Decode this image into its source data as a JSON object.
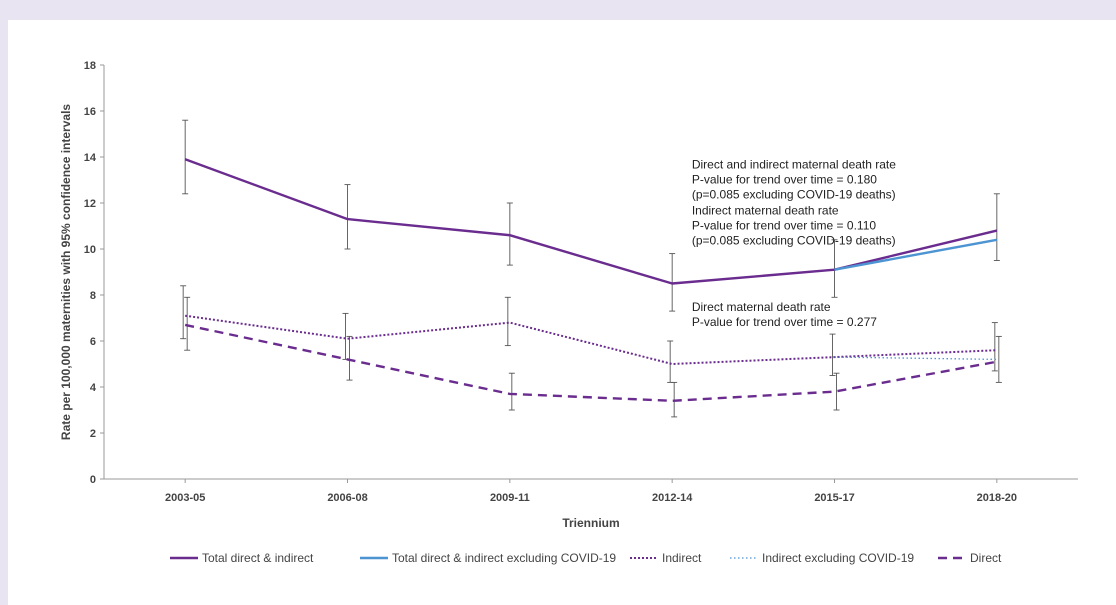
{
  "chart_data": {
    "type": "line",
    "xlabel": "Triennium",
    "ylabel": "Rate per 100,000 maternities with 95% confidence intervals",
    "ylim": [
      0,
      18
    ],
    "yticks": [
      0,
      2,
      4,
      6,
      8,
      10,
      12,
      14,
      16,
      18
    ],
    "categories": [
      "2003-05",
      "2006-08",
      "2009-11",
      "2012-14",
      "2015-17",
      "2018-20"
    ],
    "grid": false,
    "legend_position": "bottom",
    "series": [
      {
        "name": "Total direct & indirect",
        "color": "#6a2c8e",
        "dash": "solid",
        "values": [
          13.9,
          11.3,
          10.6,
          8.5,
          9.1,
          10.8
        ],
        "ci_low": [
          12.4,
          10.0,
          9.3,
          7.3,
          7.9,
          9.5
        ],
        "ci_high": [
          15.6,
          12.8,
          12.0,
          9.8,
          10.4,
          12.4
        ]
      },
      {
        "name": "Total direct & indirect excluding COVID-19",
        "color": "#4d94d2",
        "dash": "solid",
        "values": [
          null,
          null,
          null,
          null,
          9.1,
          10.4
        ]
      },
      {
        "name": "Indirect",
        "color": "#6a2c8e",
        "dash": "dotted",
        "values": [
          7.1,
          6.1,
          6.8,
          5.0,
          5.3,
          5.6
        ],
        "ci_low": [
          6.1,
          5.2,
          5.8,
          4.2,
          4.5,
          4.7
        ],
        "ci_high": [
          8.4,
          7.2,
          7.9,
          6.0,
          6.3,
          6.8
        ]
      },
      {
        "name": "Indirect excluding COVID-19",
        "color": "#4d94d2",
        "dash": "dotted-fine",
        "values": [
          null,
          null,
          null,
          null,
          5.3,
          5.2
        ]
      },
      {
        "name": "Direct",
        "color": "#6a2c8e",
        "dash": "dashed",
        "values": [
          6.7,
          5.2,
          3.7,
          3.4,
          3.8,
          5.1
        ],
        "ci_low": [
          5.6,
          4.3,
          3.0,
          2.7,
          3.0,
          4.2
        ],
        "ci_high": [
          7.9,
          6.2,
          4.6,
          4.2,
          4.6,
          6.2
        ]
      }
    ],
    "annotations": [
      {
        "x": "2018-20",
        "y": 13.5,
        "lines": [
          "Direct and indirect maternal death rate",
          "P-value for trend over time = 0.180",
          "(p=0.085 excluding COVID-19 deaths)"
        ]
      },
      {
        "x": "2018-20",
        "y": 11.5,
        "lines": [
          "Indirect maternal death rate",
          "P-value for trend over time = 0.110",
          "(p=0.085 excluding COVID-19 deaths)"
        ]
      },
      {
        "x": "2018-20",
        "y": 7.3,
        "lines": [
          "Direct maternal death rate",
          "P-value for trend over time = 0.277"
        ]
      }
    ]
  }
}
